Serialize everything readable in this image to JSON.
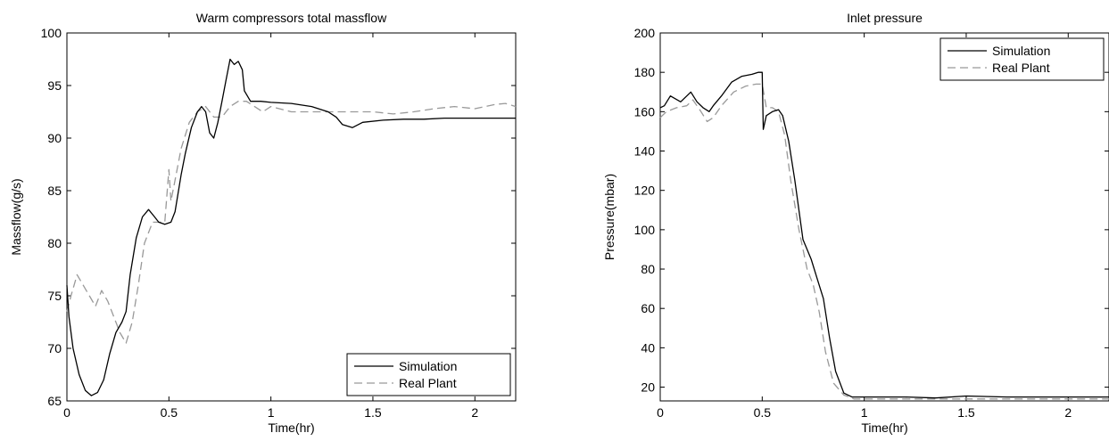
{
  "chart_data": [
    {
      "type": "line",
      "title": "Warm compressors total massflow",
      "xlabel": "Time(hr)",
      "ylabel": "Massflow(g/s)",
      "xlim": [
        0,
        2.2
      ],
      "ylim": [
        65,
        100
      ],
      "xticks": [
        "0",
        "0.5",
        "1",
        "1.5",
        "2"
      ],
      "yticks": [
        "65",
        "70",
        "75",
        "80",
        "85",
        "90",
        "95",
        "100"
      ],
      "legend_position": "bottom-right",
      "series": [
        {
          "name": "Simulation",
          "color": "#000000",
          "style": "solid",
          "x": [
            0,
            0.01,
            0.03,
            0.06,
            0.09,
            0.12,
            0.15,
            0.18,
            0.21,
            0.24,
            0.27,
            0.29,
            0.31,
            0.34,
            0.37,
            0.4,
            0.43,
            0.45,
            0.48,
            0.51,
            0.53,
            0.56,
            0.58,
            0.61,
            0.64,
            0.66,
            0.68,
            0.7,
            0.72,
            0.74,
            0.76,
            0.78,
            0.8,
            0.82,
            0.84,
            0.86,
            0.87,
            0.9,
            0.95,
            1.0,
            1.1,
            1.2,
            1.28,
            1.32,
            1.35,
            1.4,
            1.45,
            1.55,
            1.65,
            1.75,
            1.85,
            2.0,
            2.1,
            2.2
          ],
          "y": [
            76,
            73,
            70,
            67.5,
            66,
            65.5,
            65.8,
            67,
            69.5,
            71.5,
            72.5,
            73.5,
            77,
            80.5,
            82.5,
            83.2,
            82.5,
            82,
            81.8,
            82,
            83,
            86.5,
            88.5,
            91,
            92.5,
            93,
            92.5,
            90.5,
            90,
            91.5,
            93.5,
            95.5,
            97.5,
            97,
            97.3,
            96.5,
            94.5,
            93.5,
            93.5,
            93.4,
            93.3,
            93,
            92.5,
            92,
            91.3,
            91,
            91.5,
            91.7,
            91.8,
            91.8,
            91.9,
            91.9,
            91.9,
            91.9
          ]
        },
        {
          "name": "Real Plant",
          "color": "#999999",
          "style": "dashed",
          "x": [
            0,
            0.02,
            0.05,
            0.08,
            0.11,
            0.14,
            0.17,
            0.2,
            0.23,
            0.26,
            0.29,
            0.32,
            0.35,
            0.38,
            0.42,
            0.45,
            0.48,
            0.5,
            0.51,
            0.53,
            0.56,
            0.6,
            0.64,
            0.68,
            0.72,
            0.76,
            0.8,
            0.84,
            0.88,
            0.92,
            0.96,
            1.0,
            1.1,
            1.2,
            1.3,
            1.4,
            1.5,
            1.6,
            1.7,
            1.8,
            1.9,
            2.0,
            2.1,
            2.15,
            2.2
          ],
          "y": [
            73.5,
            75,
            77,
            76,
            75,
            74,
            75.5,
            74.5,
            73,
            71.5,
            70.5,
            72.5,
            76,
            80,
            82,
            82,
            82,
            87,
            84,
            86,
            89,
            91.5,
            92.5,
            93,
            92,
            92,
            93,
            93.5,
            93.5,
            93,
            92.5,
            93,
            92.5,
            92.5,
            92.5,
            92.5,
            92.5,
            92.3,
            92.5,
            92.8,
            93,
            92.8,
            93.2,
            93.3,
            93
          ]
        }
      ]
    },
    {
      "type": "line",
      "title": "Inlet pressure",
      "xlabel": "Time(hr)",
      "ylabel": "Pressure(mbar)",
      "xlim": [
        0,
        2.2
      ],
      "ylim": [
        13,
        200
      ],
      "xticks": [
        "0",
        "0.5",
        "1",
        "1.5",
        "2"
      ],
      "yticks": [
        "20",
        "40",
        "60",
        "80",
        "100",
        "120",
        "140",
        "160",
        "180",
        "200"
      ],
      "legend_position": "top-right",
      "series": [
        {
          "name": "Simulation",
          "color": "#000000",
          "style": "solid",
          "x": [
            0,
            0.02,
            0.05,
            0.1,
            0.15,
            0.18,
            0.21,
            0.24,
            0.26,
            0.3,
            0.35,
            0.4,
            0.45,
            0.48,
            0.5,
            0.505,
            0.52,
            0.55,
            0.58,
            0.6,
            0.63,
            0.66,
            0.7,
            0.74,
            0.77,
            0.8,
            0.83,
            0.86,
            0.9,
            0.94,
            0.97,
            1.0,
            1.1,
            1.2,
            1.35,
            1.5,
            1.7,
            2.0,
            2.2
          ],
          "y": [
            162,
            163,
            168,
            165,
            170,
            165,
            162,
            160,
            163,
            168,
            175,
            178,
            179,
            180,
            180,
            151,
            158,
            160,
            161,
            158,
            145,
            125,
            95,
            85,
            75,
            65,
            45,
            28,
            17,
            15,
            15,
            15,
            15,
            15,
            14.5,
            15.5,
            15,
            15,
            15
          ]
        },
        {
          "name": "Real Plant",
          "color": "#999999",
          "style": "dashed",
          "x": [
            0,
            0.03,
            0.08,
            0.13,
            0.16,
            0.2,
            0.23,
            0.26,
            0.3,
            0.36,
            0.42,
            0.47,
            0.5,
            0.52,
            0.55,
            0.58,
            0.61,
            0.64,
            0.68,
            0.72,
            0.75,
            0.78,
            0.81,
            0.85,
            0.9,
            0.95,
            1.0,
            1.2,
            1.5,
            1.8,
            2.2
          ],
          "y": [
            157,
            160,
            162,
            163,
            166,
            160,
            155,
            157,
            163,
            170,
            173,
            174,
            174,
            162,
            162,
            160,
            148,
            125,
            100,
            80,
            72,
            58,
            38,
            22,
            16,
            14,
            14,
            14,
            14,
            14,
            14
          ]
        }
      ]
    }
  ]
}
